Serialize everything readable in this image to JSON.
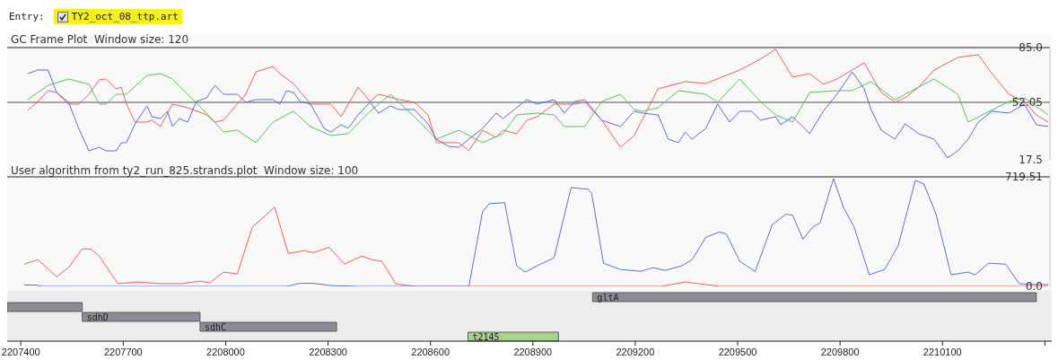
{
  "chart_data": [
    {
      "type": "line",
      "title": "GC Frame Plot  Window size: 120",
      "annotations": [
        "Entry:",
        "TY2_oct_08_ttp.art"
      ],
      "xlim": [
        2207360,
        2210420
      ],
      "ylim": [
        17.5,
        85
      ],
      "yticks": [
        17.5,
        52.05,
        {
          "value": 85,
          "label": "85.0"
        }
      ],
      "tick_labels": "y",
      "ref_lines": [
        {
          "axis": "y",
          "value": 52.05,
          "color": "#8a8a8a"
        }
      ],
      "series": [
        {
          "color": "#f25c5c",
          "x": [
            2207420,
            2207450,
            2207480,
            2207505,
            2207540,
            2207570,
            2207600,
            2207630,
            2207650,
            2207680,
            2207695,
            2207710,
            2207735,
            2207770,
            2207785,
            2207810,
            2207845,
            2207890,
            2207945,
            2207970,
            2207995,
            2208035,
            2208060,
            2208090,
            2208140,
            2208160,
            2208200,
            2208250,
            2208290,
            2208310,
            2208340,
            2208390,
            2208425,
            2208450,
            2208510,
            2208555,
            2208595,
            2208620,
            2208655,
            2208685,
            2208715,
            2208755,
            2208795,
            2208815,
            2208855,
            2208885,
            2208915,
            2208965,
            2209025,
            2209055,
            2209105,
            2209160,
            2209200,
            2209270,
            2209350,
            2209410,
            2209510,
            2209570,
            2209615,
            2209665,
            2209715,
            2209755,
            2209795,
            2209875,
            2209925,
            2209965,
            2209995,
            2210035,
            2210080,
            2210150,
            2210210,
            2210250,
            2210300,
            2210345,
            2210380,
            2210415
          ],
          "values": [
            47.2,
            52.6,
            59.1,
            58,
            51,
            51,
            56.9,
            65.6,
            66.1,
            60.2,
            61.2,
            51,
            40.2,
            40.2,
            41.3,
            37.5,
            51,
            48.8,
            44.5,
            40.2,
            41.3,
            51,
            56.9,
            70.4,
            73.7,
            69.3,
            63.4,
            51,
            51,
            51,
            43.4,
            61.2,
            52.6,
            56.9,
            53.7,
            52.1,
            44.5,
            27.8,
            27.8,
            27.8,
            22.9,
            35.3,
            31,
            35.3,
            33.2,
            41.3,
            43.4,
            51,
            51,
            52.1,
            41.3,
            25,
            32.1,
            60.2,
            64.5,
            63.4,
            71.5,
            78,
            83.9,
            67.2,
            69.3,
            63,
            66.1,
            75.8,
            58,
            52.1,
            54.8,
            61.2,
            71.5,
            79.1,
            80.7,
            69.3,
            56.9,
            52.6,
            44.5,
            40.2
          ]
        },
        {
          "color": "#5bbf5b",
          "x": [
            2207420,
            2207480,
            2207540,
            2207600,
            2207630,
            2207650,
            2207680,
            2207710,
            2207770,
            2207810,
            2207845,
            2207890,
            2207945,
            2207995,
            2208035,
            2208090,
            2208140,
            2208200,
            2208250,
            2208310,
            2208360,
            2208425,
            2208485,
            2208555,
            2208620,
            2208685,
            2208755,
            2208815,
            2208855,
            2208915,
            2208965,
            2208995,
            2209055,
            2209105,
            2209160,
            2209200,
            2209225,
            2209270,
            2209330,
            2209410,
            2209445,
            2209510,
            2209570,
            2209615,
            2209665,
            2209715,
            2209795,
            2209840,
            2209895,
            2209965,
            2210035,
            2210080,
            2210150,
            2210180,
            2210300,
            2210345,
            2210415
          ],
          "values": [
            53.7,
            62.3,
            66.1,
            63,
            51,
            51,
            56.9,
            56.9,
            68.2,
            69.3,
            66.1,
            56.9,
            45.6,
            34.2,
            35.3,
            27.8,
            40.2,
            46.7,
            37.5,
            32.1,
            33.2,
            46.7,
            56.9,
            43.4,
            29.9,
            35.3,
            27.8,
            33.2,
            44.5,
            45.6,
            44.5,
            37.5,
            37.5,
            52.6,
            56.9,
            47.7,
            46.7,
            48.8,
            59.1,
            56.9,
            52.1,
            66.1,
            52.6,
            44.5,
            40.2,
            58,
            59.1,
            59.1,
            64.5,
            53.7,
            61.2,
            66.1,
            56.9,
            40.2,
            52.6,
            54.8,
            44.5
          ]
        },
        {
          "color": "#5b6fc9",
          "x": [
            2207420,
            2207450,
            2207480,
            2207505,
            2207540,
            2207570,
            2207600,
            2207630,
            2207650,
            2207680,
            2207695,
            2207710,
            2207735,
            2207770,
            2207785,
            2207810,
            2207830,
            2207845,
            2207865,
            2207890,
            2207915,
            2207945,
            2207970,
            2207995,
            2208035,
            2208060,
            2208090,
            2208140,
            2208160,
            2208180,
            2208200,
            2208220,
            2208250,
            2208290,
            2208310,
            2208340,
            2208360,
            2208390,
            2208425,
            2208450,
            2208485,
            2208510,
            2208555,
            2208595,
            2208620,
            2208655,
            2208685,
            2208715,
            2208755,
            2208795,
            2208815,
            2208855,
            2208885,
            2208915,
            2208965,
            2208995,
            2209025,
            2209055,
            2209105,
            2209160,
            2209200,
            2209225,
            2209270,
            2209300,
            2209330,
            2209350,
            2209370,
            2209410,
            2209445,
            2209480,
            2209510,
            2209545,
            2209570,
            2209615,
            2209630,
            2209665,
            2209715,
            2209755,
            2209795,
            2209840,
            2209875,
            2209895,
            2209925,
            2209965,
            2209995,
            2210035,
            2210080,
            2210120,
            2210150,
            2210180,
            2210210,
            2210250,
            2210300,
            2210345,
            2210380,
            2210415
          ],
          "values": [
            69.3,
            71.5,
            71.5,
            58,
            52.1,
            36.4,
            22.9,
            25,
            22.9,
            22.9,
            27.8,
            27.8,
            39.1,
            49.9,
            43.4,
            42.3,
            46.7,
            37.5,
            42.3,
            40.2,
            52.6,
            54.8,
            62.3,
            56.9,
            56.9,
            52.1,
            53.7,
            53.7,
            51,
            59.1,
            58,
            52.6,
            51,
            36.4,
            34.2,
            38.6,
            36.4,
            44.5,
            52.1,
            45.6,
            49.9,
            47.7,
            47.7,
            39.1,
            29.9,
            25.6,
            25,
            29.9,
            36.4,
            45.6,
            42.3,
            48.8,
            53.7,
            51,
            53.7,
            45.6,
            52.6,
            53.7,
            41.3,
            37.5,
            46.7,
            45.6,
            44.5,
            29.9,
            27.8,
            34.2,
            29.9,
            36.4,
            51,
            40.2,
            46.7,
            46.7,
            41.3,
            43.4,
            38.6,
            43.4,
            33.2,
            46.7,
            56.9,
            70.4,
            60.2,
            47.7,
            35.3,
            29.9,
            39.1,
            33.2,
            29.9,
            18.6,
            22.9,
            29.9,
            40.2,
            46.7,
            45.6,
            51,
            38.6,
            37.5
          ]
        }
      ]
    },
    {
      "type": "line",
      "title": "User algorithm from ty2_run_825.strands.plot  Window size: 100",
      "xlim": [
        2207360,
        2210420
      ],
      "ylim": [
        0,
        719.51
      ],
      "yticks": [
        {
          "value": 0,
          "label": "0.0"
        },
        719.51
      ],
      "tick_labels": "y",
      "series": [
        {
          "color": "#f25c5c",
          "x": [
            2207410,
            2207450,
            2207505,
            2207540,
            2207580,
            2207605,
            2207630,
            2207685,
            2207745,
            2207805,
            2207875,
            2207925,
            2207955,
            2207995,
            2208035,
            2208080,
            2208105,
            2208145,
            2208185,
            2208230,
            2208260,
            2208305,
            2208350,
            2208400,
            2208430,
            2208460,
            2208500,
            2208535,
            2208560,
            2209280,
            2209350,
            2209450,
            2210415
          ],
          "values": [
            146,
            176,
            64,
            123,
            246,
            246,
            199,
            18,
            29,
            18,
            18,
            35,
            23,
            94,
            82,
            392,
            439,
            521,
            216,
            234,
            222,
            257,
            146,
            199,
            176,
            164,
            18,
            6,
            0,
            0,
            29,
            0,
            0
          ]
        },
        {
          "color": "#5b6fc9",
          "x": [
            2207410,
            2207445,
            2207460,
            2208180,
            2208220,
            2208260,
            2208310,
            2208400,
            2208715,
            2208755,
            2208775,
            2208820,
            2208855,
            2208880,
            2208925,
            2208965,
            2208995,
            2209015,
            2209065,
            2209075,
            2209110,
            2209160,
            2209220,
            2209255,
            2209290,
            2209340,
            2209370,
            2209410,
            2209450,
            2209470,
            2209510,
            2209555,
            2209605,
            2209645,
            2209665,
            2209695,
            2209725,
            2209745,
            2209785,
            2209815,
            2209845,
            2209890,
            2209935,
            2209975,
            2210025,
            2210050,
            2210085,
            2210130,
            2210180,
            2210200,
            2210240,
            2210290,
            2210330,
            2210360,
            2210415
          ],
          "values": [
            9,
            9,
            0,
            0,
            20,
            20,
            5,
            0,
            0,
            491,
            544,
            550,
            135,
            94,
            146,
            187,
            468,
            649,
            638,
            614,
            152,
            111,
            99,
            123,
            105,
            135,
            176,
            322,
            357,
            345,
            164,
            99,
            404,
            474,
            468,
            310,
            392,
            415,
            708,
            515,
            392,
            76,
            111,
            269,
            696,
            673,
            480,
            76,
            94,
            76,
            152,
            146,
            18,
            12,
            12
          ]
        }
      ]
    },
    {
      "type": "bar",
      "orientation": "horizontal",
      "categories": [
        "gltA",
        null,
        "sdhD",
        "sdhC",
        "t2145"
      ],
      "values": [
        1300,
        220,
        345,
        400,
        265
      ],
      "base": [
        2209075,
        2207360,
        2207580,
        2207925,
        2208710
      ],
      "colors": [
        "#8c8c94",
        "#8c8c94",
        "#8c8c94",
        "#8c8c94",
        "#a9d18e"
      ],
      "xlim": [
        2207360,
        2210420
      ],
      "xticks": [
        2207400,
        2207700,
        2208000,
        2208300,
        2208600,
        2208900,
        2209200,
        2209500,
        2209800,
        2210100,
        {
          "value": 2210400,
          "label": null
        }
      ],
      "tick_labels": "x"
    }
  ]
}
